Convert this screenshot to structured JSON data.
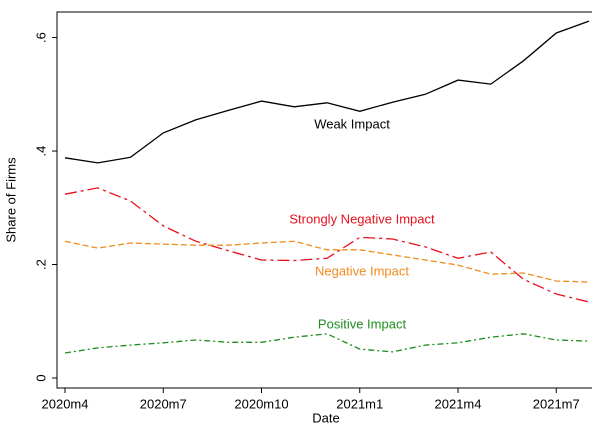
{
  "chart_data": {
    "type": "line",
    "x_label": "Date",
    "y_label": "Share of Firms",
    "categories": [
      "2020m4",
      null,
      null,
      "2020m7",
      null,
      null,
      "2020m10",
      null,
      null,
      "2021m1",
      null,
      null,
      "2021m4",
      null,
      null,
      "2021m7",
      null
    ],
    "series": [
      {
        "name": "Weak Impact",
        "color": "#000000",
        "values": [
          0.388,
          0.379,
          0.389,
          0.432,
          0.455,
          0.472,
          0.488,
          0.478,
          0.485,
          0.47,
          0.486,
          0.5,
          0.525,
          0.518,
          0.559,
          0.608,
          0.629
        ]
      },
      {
        "name": "Strongly Negative Impact",
        "color": "#e8101e",
        "values": [
          0.324,
          0.335,
          0.312,
          0.268,
          0.241,
          0.224,
          0.208,
          0.207,
          0.211,
          0.248,
          0.245,
          0.231,
          0.211,
          0.222,
          0.174,
          0.148,
          0.134
        ]
      },
      {
        "name": "Negative Impact",
        "color": "#f08c1e",
        "values": [
          0.241,
          0.229,
          0.238,
          0.236,
          0.234,
          0.234,
          0.238,
          0.241,
          0.226,
          0.226,
          0.217,
          0.208,
          0.199,
          0.183,
          0.185,
          0.171,
          0.169
        ]
      },
      {
        "name": "Positive Impact",
        "color": "#1e8c1e",
        "values": [
          0.044,
          0.053,
          0.058,
          0.062,
          0.067,
          0.063,
          0.063,
          0.072,
          0.078,
          0.051,
          0.046,
          0.058,
          0.062,
          0.072,
          0.078,
          0.067,
          0.065
        ]
      }
    ],
    "ylim": [
      -0.0176,
      0.645
    ],
    "yticks": [
      0,
      {
        "value": 0.2,
        "label": ".2"
      },
      {
        "value": 0.4,
        "label": ".4"
      },
      {
        "value": 0.6,
        "label": ".6"
      }
    ]
  }
}
